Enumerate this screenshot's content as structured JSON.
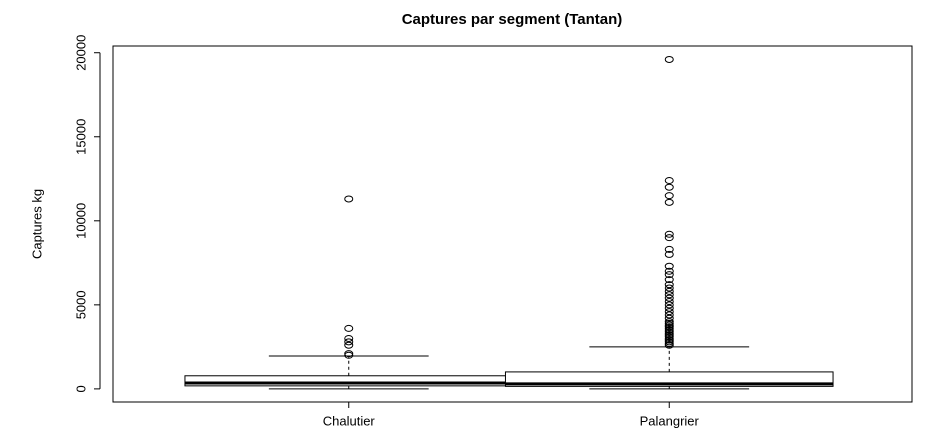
{
  "chart_data": {
    "type": "box",
    "title": "Captures par segment (Tantan)",
    "y_label": "Captures kg",
    "categories": [
      "Chalutier",
      "Palangrier"
    ],
    "boxes": [
      {
        "min": 0,
        "q1": 180,
        "median": 350,
        "q3": 780,
        "max": 1960,
        "outliers": [
          2000,
          2100,
          2600,
          2800,
          3000,
          3600,
          11300
        ]
      },
      {
        "min": 0,
        "q1": 150,
        "median": 300,
        "q3": 1010,
        "max": 2500,
        "outliers": [
          2600,
          2700,
          2800,
          2900,
          3000,
          3100,
          3200,
          3300,
          3400,
          3500,
          3600,
          3700,
          3800,
          3900,
          4000,
          4200,
          4400,
          4600,
          4800,
          5000,
          5200,
          5400,
          5600,
          5800,
          6000,
          6200,
          6500,
          6800,
          7000,
          7300,
          8000,
          8300,
          9000,
          9200,
          11100,
          11500,
          12000,
          12400,
          19600
        ]
      }
    ],
    "color": "#000000",
    "ylim": [
      -780,
      20400
    ],
    "yticks": [
      0,
      5000,
      10000,
      15000,
      20000
    ]
  }
}
